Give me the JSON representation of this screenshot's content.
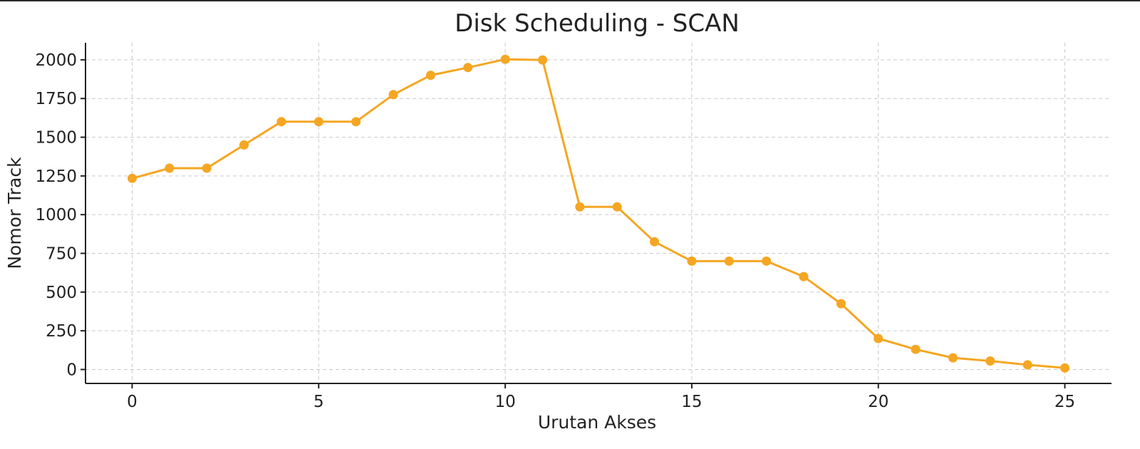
{
  "chart_data": {
    "type": "line",
    "title": "Disk Scheduling - SCAN",
    "xlabel": "Urutan Akses",
    "ylabel": "Nomor Track",
    "x": [
      0,
      1,
      2,
      3,
      4,
      5,
      6,
      7,
      8,
      9,
      10,
      11,
      12,
      13,
      14,
      15,
      16,
      17,
      18,
      19,
      20,
      21,
      22,
      23,
      24,
      25
    ],
    "series": [
      {
        "values": [
          1234,
          1300,
          1300,
          1450,
          1600,
          1600,
          1600,
          1775,
          1900,
          1950,
          2003,
          1999,
          1050,
          1050,
          825,
          700,
          700,
          700,
          600,
          425,
          200,
          130,
          75,
          55,
          30,
          10
        ]
      }
    ],
    "xlim": [
      -1.25,
      26.25
    ],
    "ylim": [
      -90,
      2110
    ],
    "xticks": [
      0,
      5,
      10,
      15,
      20,
      25
    ],
    "yticks": [
      0,
      250,
      500,
      750,
      1000,
      1250,
      1500,
      1750,
      2000
    ],
    "grid": true,
    "line_color": "#F5A623",
    "marker": "circle"
  }
}
